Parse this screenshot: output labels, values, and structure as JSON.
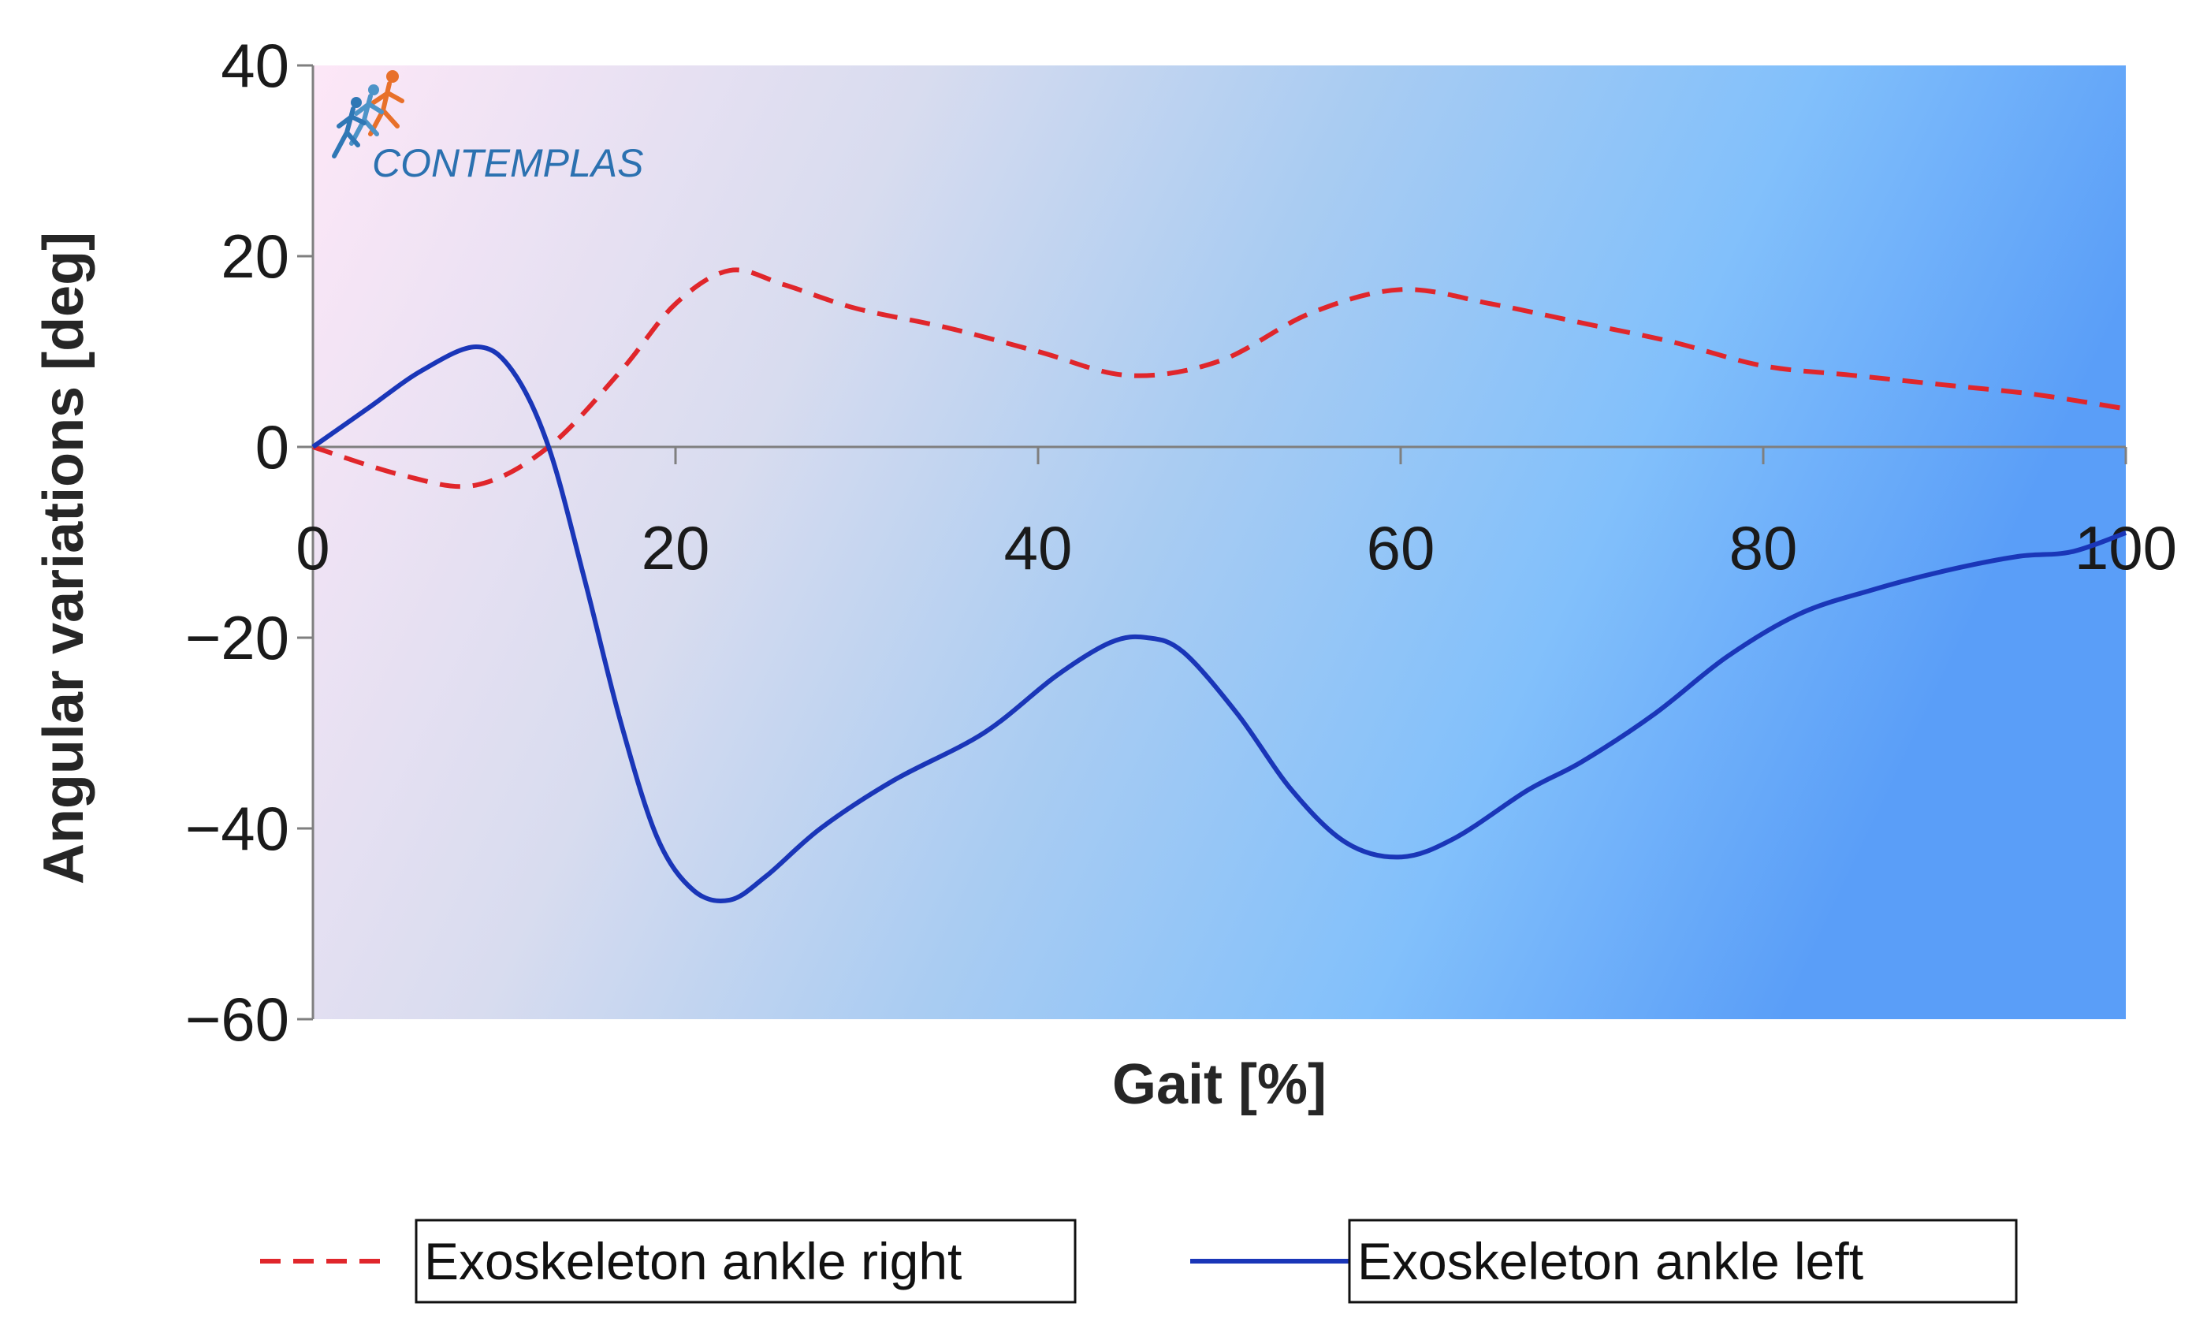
{
  "chart_data": {
    "type": "line",
    "title": "",
    "xlabel": "Gait [%]",
    "ylabel": "Angular variations [deg]",
    "xlim": [
      0,
      100
    ],
    "ylim": [
      -60,
      40
    ],
    "x_ticks": [
      0,
      20,
      40,
      60,
      80,
      100
    ],
    "y_ticks": [
      40,
      20,
      0,
      -20,
      -40,
      -60
    ],
    "x_tick_labels": [
      "0",
      "20",
      "40",
      "60",
      "80",
      "100"
    ],
    "y_tick_labels": [
      "40",
      "20",
      "0",
      "−20",
      "−40",
      "−60"
    ],
    "grid": false,
    "legend_position": "bottom",
    "series": [
      {
        "name": "Exoskeleton ankle right",
        "color": "#e0262b",
        "style": "dashed",
        "x": [
          0,
          5,
          9,
          13,
          17,
          20,
          23,
          26,
          30,
          35,
          40,
          45,
          50,
          55,
          60,
          65,
          70,
          75,
          80,
          85,
          90,
          95,
          100
        ],
        "y": [
          0,
          -3,
          -4,
          0,
          8,
          15,
          18.5,
          17,
          14.5,
          12.5,
          10,
          7.5,
          9,
          14,
          16.5,
          15,
          13,
          11,
          8.5,
          7.5,
          6.5,
          5.5,
          4
        ]
      },
      {
        "name": "Exoskeleton ankle left",
        "color": "#1a36b8",
        "style": "solid",
        "x": [
          0,
          3,
          6,
          9,
          11,
          13,
          15,
          17,
          19,
          21,
          23,
          25,
          28,
          32,
          37,
          41,
          44,
          46,
          48,
          51,
          54,
          57,
          60,
          63,
          67,
          70,
          74,
          78,
          82,
          86,
          90,
          94,
          97,
          100
        ],
        "y": [
          0,
          4,
          8,
          10.5,
          8,
          0,
          -14,
          -29,
          -41,
          -46.5,
          -47.5,
          -45,
          -40,
          -35,
          -30,
          -24,
          -20.5,
          -20,
          -21.5,
          -28,
          -36,
          -41.5,
          -43,
          -41,
          -36,
          -33,
          -28,
          -22,
          -17.5,
          -15,
          -13,
          -11.5,
          -11,
          -9
        ]
      }
    ]
  },
  "logo": {
    "text": "CONTEMPLAS"
  }
}
